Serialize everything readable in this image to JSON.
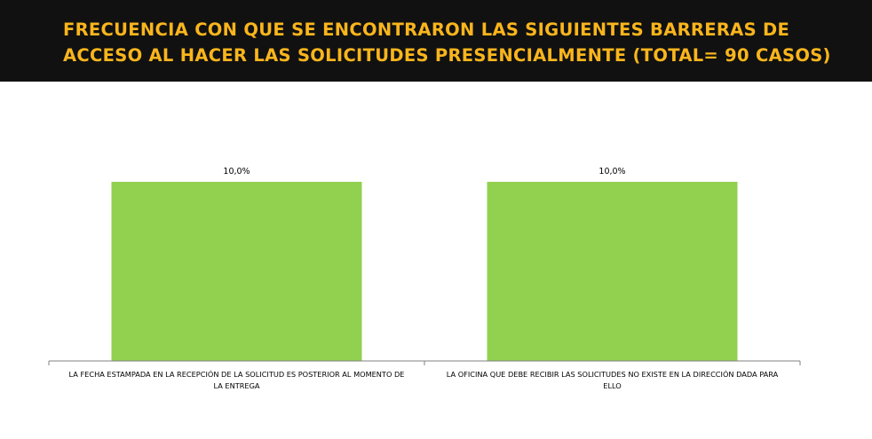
{
  "header": {
    "title": "FRECUENCIA CON QUE SE ENCONTRARON LAS SIGUIENTES BARRERAS DE\nACCESO AL HACER LAS SOLICITUDES PRESENCIALMENTE (TOTAL= 90 CASOS)"
  },
  "colors": {
    "header_bg": "#111111",
    "title": "#f9b51c",
    "bar": "#92d050",
    "axis": "#808080",
    "text": "#000000"
  },
  "chart_data": {
    "type": "bar",
    "title": "",
    "xlabel": "",
    "ylabel": "",
    "ylim": [
      0,
      10
    ],
    "categories": [
      [
        "LA FECHA ESTAMPADA EN LA RECEPCIÓN DE LA SOLICITUD ES POSTERIOR AL MOMENTO DE",
        "LA ENTREGA"
      ],
      [
        "LA OFICINA QUE DEBE RECIBIR LAS SOLICITUDES NO EXISTE EN LA DIRECCIÓN DADA PARA",
        "ELLO"
      ]
    ],
    "values": [
      10.0,
      10.0
    ],
    "data_labels": [
      "10,0%",
      "10,0%"
    ],
    "grid": false,
    "legend": "none"
  }
}
